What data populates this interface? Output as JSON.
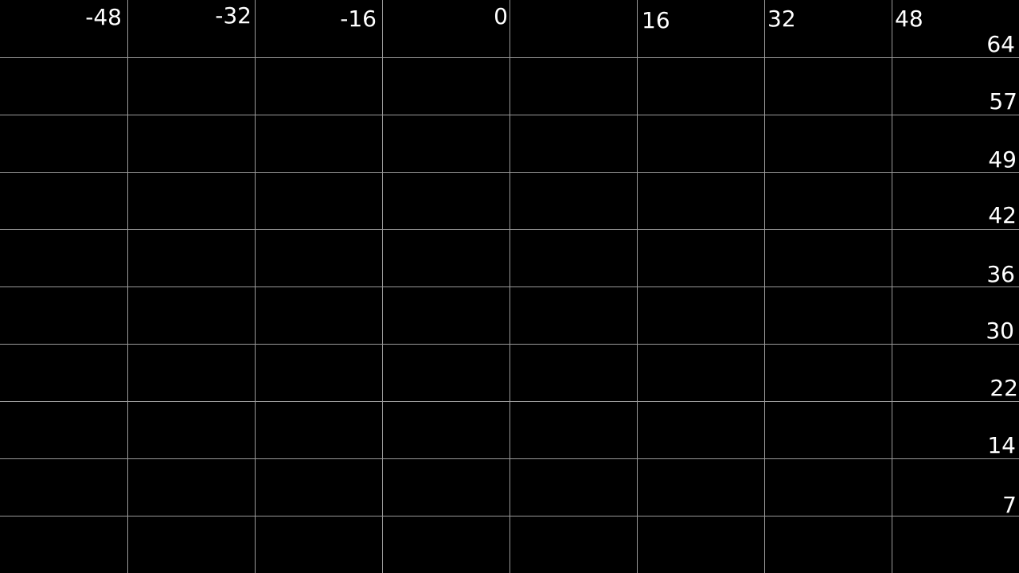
{
  "theme": {
    "background": "#000000",
    "grid_line_color": "#9a9a9a",
    "label_color": "#ffffff"
  },
  "grid_overlay": {
    "x_labels": [
      {
        "text": "-48"
      },
      {
        "text": "-32"
      },
      {
        "text": "-16"
      },
      {
        "text": "0"
      },
      {
        "text": "16"
      },
      {
        "text": "32"
      },
      {
        "text": "48"
      }
    ],
    "y_labels": [
      {
        "text": "64"
      },
      {
        "text": "57"
      },
      {
        "text": "49"
      },
      {
        "text": "42"
      },
      {
        "text": "36"
      },
      {
        "text": "30"
      },
      {
        "text": "22"
      },
      {
        "text": "14"
      },
      {
        "text": "7"
      }
    ]
  }
}
